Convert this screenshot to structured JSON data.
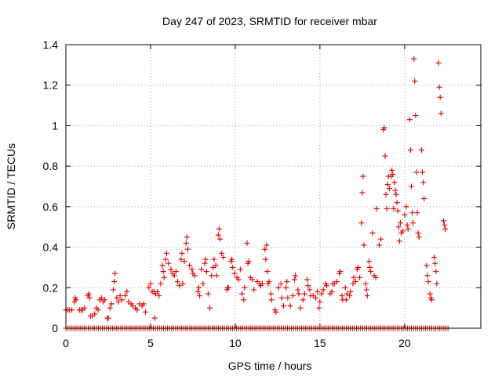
{
  "chart_data": {
    "type": "scatter",
    "title": "Day 247 of 2023, SRMTID for receiver mbar",
    "xlabel": "GPS time / hours",
    "ylabel": "SRMTID / TECUs",
    "xlim": [
      0,
      24.5
    ],
    "ylim": [
      0,
      1.4
    ],
    "xticks": [
      0,
      5,
      10,
      15,
      20
    ],
    "xtick_labels": [
      "0",
      "5",
      "10",
      "15",
      "20"
    ],
    "yticks": [
      0,
      0.2,
      0.4,
      0.6,
      0.8,
      1.0,
      1.2,
      1.4
    ],
    "ytick_labels": [
      "0",
      "0.2",
      "0.4",
      "0.6",
      "0.8",
      "1",
      "1.2",
      "1.4"
    ],
    "grid": true,
    "marker": "+",
    "color": "#e00000",
    "series": [
      {
        "name": "SRMTID",
        "points": [
          [
            0.0,
            0.09
          ],
          [
            0.1,
            0.09
          ],
          [
            0.2,
            0.09
          ],
          [
            0.35,
            0.09
          ],
          [
            0.5,
            0.13
          ],
          [
            0.55,
            0.15
          ],
          [
            0.6,
            0.14
          ],
          [
            0.8,
            0.09
          ],
          [
            0.9,
            0.09
          ],
          [
            1.0,
            0.09
          ],
          [
            1.1,
            0.1
          ],
          [
            1.3,
            0.16
          ],
          [
            1.35,
            0.17
          ],
          [
            1.4,
            0.15
          ],
          [
            1.45,
            0.06
          ],
          [
            1.55,
            0.06
          ],
          [
            1.7,
            0.07
          ],
          [
            1.8,
            0.1
          ],
          [
            1.9,
            0.09
          ],
          [
            2.0,
            0.14
          ],
          [
            2.1,
            0.15
          ],
          [
            2.2,
            0.13
          ],
          [
            2.3,
            0.14
          ],
          [
            2.45,
            0.05
          ],
          [
            2.5,
            0.05
          ],
          [
            2.6,
            0.1
          ],
          [
            2.7,
            0.12
          ],
          [
            2.8,
            0.19
          ],
          [
            2.85,
            0.23
          ],
          [
            2.9,
            0.27
          ],
          [
            3.0,
            0.15
          ],
          [
            3.1,
            0.13
          ],
          [
            3.2,
            0.16
          ],
          [
            3.3,
            0.14
          ],
          [
            3.5,
            0.16
          ],
          [
            3.6,
            0.18
          ],
          [
            3.7,
            0.13
          ],
          [
            3.85,
            0.12
          ],
          [
            3.95,
            0.11
          ],
          [
            4.1,
            0.1
          ],
          [
            4.2,
            0.09
          ],
          [
            4.35,
            0.12
          ],
          [
            4.5,
            0.11
          ],
          [
            4.6,
            0.12
          ],
          [
            4.7,
            0.08
          ],
          [
            4.9,
            0.2
          ],
          [
            5.0,
            0.22
          ],
          [
            5.1,
            0.18
          ],
          [
            5.2,
            0.18
          ],
          [
            5.25,
            0.05
          ],
          [
            5.3,
            0.17
          ],
          [
            5.4,
            0.18
          ],
          [
            5.5,
            0.16
          ],
          [
            5.6,
            0.22
          ],
          [
            5.7,
            0.31
          ],
          [
            5.75,
            0.28
          ],
          [
            5.8,
            0.25
          ],
          [
            5.9,
            0.34
          ],
          [
            5.95,
            0.37
          ],
          [
            6.05,
            0.32
          ],
          [
            6.2,
            0.29
          ],
          [
            6.3,
            0.27
          ],
          [
            6.4,
            0.26
          ],
          [
            6.5,
            0.28
          ],
          [
            6.6,
            0.23
          ],
          [
            6.7,
            0.21
          ],
          [
            6.8,
            0.34
          ],
          [
            6.85,
            0.37
          ],
          [
            6.9,
            0.22
          ],
          [
            7.0,
            0.33
          ],
          [
            7.1,
            0.42
          ],
          [
            7.15,
            0.45
          ],
          [
            7.2,
            0.39
          ],
          [
            7.3,
            0.31
          ],
          [
            7.45,
            0.29
          ],
          [
            7.5,
            0.27
          ],
          [
            7.6,
            0.26
          ],
          [
            7.8,
            0.18
          ],
          [
            7.85,
            0.2
          ],
          [
            7.9,
            0.16
          ],
          [
            8.0,
            0.29
          ],
          [
            8.1,
            0.22
          ],
          [
            8.2,
            0.32
          ],
          [
            8.25,
            0.34
          ],
          [
            8.3,
            0.28
          ],
          [
            8.4,
            0.17
          ],
          [
            8.5,
            0.1
          ],
          [
            8.6,
            0.26
          ],
          [
            8.7,
            0.3
          ],
          [
            8.75,
            0.34
          ],
          [
            8.85,
            0.31
          ],
          [
            8.9,
            0.26
          ],
          [
            9.0,
            0.46
          ],
          [
            9.05,
            0.49
          ],
          [
            9.1,
            0.44
          ],
          [
            9.2,
            0.37
          ],
          [
            9.3,
            0.35
          ],
          [
            9.5,
            0.19
          ],
          [
            9.55,
            0.2
          ],
          [
            9.6,
            0.2
          ],
          [
            9.75,
            0.33
          ],
          [
            9.8,
            0.34
          ],
          [
            9.85,
            0.3
          ],
          [
            9.95,
            0.27
          ],
          [
            10.1,
            0.25
          ],
          [
            10.2,
            0.24
          ],
          [
            10.3,
            0.29
          ],
          [
            10.4,
            0.17
          ],
          [
            10.5,
            0.14
          ],
          [
            10.55,
            0.2
          ],
          [
            10.7,
            0.42
          ],
          [
            10.75,
            0.32
          ],
          [
            10.8,
            0.33
          ],
          [
            10.9,
            0.25
          ],
          [
            11.0,
            0.24
          ],
          [
            11.1,
            0.19
          ],
          [
            11.3,
            0.23
          ],
          [
            11.45,
            0.22
          ],
          [
            11.5,
            0.21
          ],
          [
            11.6,
            0.22
          ],
          [
            11.75,
            0.39
          ],
          [
            11.8,
            0.34
          ],
          [
            11.85,
            0.41
          ],
          [
            11.9,
            0.28
          ],
          [
            11.95,
            0.22
          ],
          [
            12.0,
            0.23
          ],
          [
            12.1,
            0.17
          ],
          [
            12.15,
            0.14
          ],
          [
            12.35,
            0.09
          ],
          [
            12.4,
            0.08
          ],
          [
            12.55,
            0.2
          ],
          [
            12.7,
            0.22
          ],
          [
            12.75,
            0.15
          ],
          [
            12.85,
            0.11
          ],
          [
            13.0,
            0.2
          ],
          [
            13.05,
            0.23
          ],
          [
            13.1,
            0.15
          ],
          [
            13.25,
            0.11
          ],
          [
            13.4,
            0.16
          ],
          [
            13.5,
            0.24
          ],
          [
            13.55,
            0.26
          ],
          [
            13.7,
            0.19
          ],
          [
            13.75,
            0.17
          ],
          [
            13.85,
            0.1
          ],
          [
            14.0,
            0.14
          ],
          [
            14.1,
            0.17
          ],
          [
            14.25,
            0.24
          ],
          [
            14.3,
            0.21
          ],
          [
            14.4,
            0.19
          ],
          [
            14.45,
            0.16
          ],
          [
            14.6,
            0.16
          ],
          [
            14.75,
            0.15
          ],
          [
            14.85,
            0.18
          ],
          [
            14.95,
            0.1
          ],
          [
            15.0,
            0.13
          ],
          [
            15.1,
            0.17
          ],
          [
            15.2,
            0.19
          ],
          [
            15.35,
            0.22
          ],
          [
            15.4,
            0.21
          ],
          [
            15.6,
            0.17
          ],
          [
            15.7,
            0.18
          ],
          [
            15.75,
            0.22
          ],
          [
            15.85,
            0.22
          ],
          [
            16.0,
            0.23
          ],
          [
            16.15,
            0.27
          ],
          [
            16.2,
            0.28
          ],
          [
            16.3,
            0.16
          ],
          [
            16.35,
            0.14
          ],
          [
            16.5,
            0.2
          ],
          [
            16.55,
            0.14
          ],
          [
            16.6,
            0.17
          ],
          [
            16.75,
            0.16
          ],
          [
            16.8,
            0.18
          ],
          [
            16.95,
            0.22
          ],
          [
            17.0,
            0.25
          ],
          [
            17.1,
            0.23
          ],
          [
            17.2,
            0.29
          ],
          [
            17.25,
            0.3
          ],
          [
            17.35,
            0.25
          ],
          [
            17.45,
            0.52
          ],
          [
            17.5,
            0.67
          ],
          [
            17.55,
            0.75
          ],
          [
            17.6,
            0.41
          ],
          [
            17.7,
            0.22
          ],
          [
            17.75,
            0.19
          ],
          [
            17.8,
            0.16
          ],
          [
            17.9,
            0.33
          ],
          [
            17.95,
            0.3
          ],
          [
            18.0,
            0.28
          ],
          [
            18.1,
            0.47
          ],
          [
            18.2,
            0.26
          ],
          [
            18.3,
            0.25
          ],
          [
            18.35,
            0.59
          ],
          [
            18.5,
            0.41
          ],
          [
            18.6,
            0.44
          ],
          [
            18.75,
            0.98
          ],
          [
            18.8,
            0.99
          ],
          [
            18.85,
            0.85
          ],
          [
            18.9,
            0.66
          ],
          [
            18.95,
            0.59
          ],
          [
            19.0,
            0.71
          ],
          [
            19.05,
            0.75
          ],
          [
            19.1,
            0.69
          ],
          [
            19.2,
            0.75
          ],
          [
            19.25,
            0.78
          ],
          [
            19.3,
            0.76
          ],
          [
            19.35,
            0.59
          ],
          [
            19.4,
            0.72
          ],
          [
            19.45,
            0.68
          ],
          [
            19.5,
            0.66
          ],
          [
            19.55,
            0.62
          ],
          [
            19.6,
            0.58
          ],
          [
            19.65,
            0.5
          ],
          [
            19.7,
            0.43
          ],
          [
            19.75,
            0.52
          ],
          [
            19.8,
            0.47
          ],
          [
            19.9,
            0.48
          ],
          [
            20.0,
            0.56
          ],
          [
            20.1,
            0.6
          ],
          [
            20.15,
            0.51
          ],
          [
            20.2,
            0.49
          ],
          [
            20.3,
            1.03
          ],
          [
            20.35,
            0.88
          ],
          [
            20.4,
            0.7
          ],
          [
            20.45,
            0.57
          ],
          [
            20.5,
            0.52
          ],
          [
            20.55,
            1.33
          ],
          [
            20.6,
            1.22
          ],
          [
            20.65,
            1.05
          ],
          [
            20.7,
            0.77
          ],
          [
            20.75,
            0.57
          ],
          [
            20.8,
            0.47
          ],
          [
            20.85,
            0.45
          ],
          [
            21.0,
            0.88
          ],
          [
            21.05,
            0.77
          ],
          [
            21.1,
            0.72
          ],
          [
            21.15,
            0.64
          ],
          [
            21.3,
            0.31
          ],
          [
            21.35,
            0.26
          ],
          [
            21.4,
            0.23
          ],
          [
            21.5,
            0.17
          ],
          [
            21.55,
            0.15
          ],
          [
            21.6,
            0.14
          ],
          [
            21.75,
            0.35
          ],
          [
            21.8,
            0.32
          ],
          [
            21.85,
            0.28
          ],
          [
            21.9,
            0.22
          ],
          [
            22.0,
            1.31
          ],
          [
            22.05,
            1.19
          ],
          [
            22.1,
            1.14
          ],
          [
            22.15,
            1.06
          ],
          [
            22.3,
            0.53
          ],
          [
            22.35,
            0.51
          ],
          [
            22.4,
            0.49
          ]
        ],
        "zero_baseline": {
          "y": 0,
          "x_from": 0,
          "x_to": 22.6,
          "step": 0.12
        }
      }
    ]
  }
}
